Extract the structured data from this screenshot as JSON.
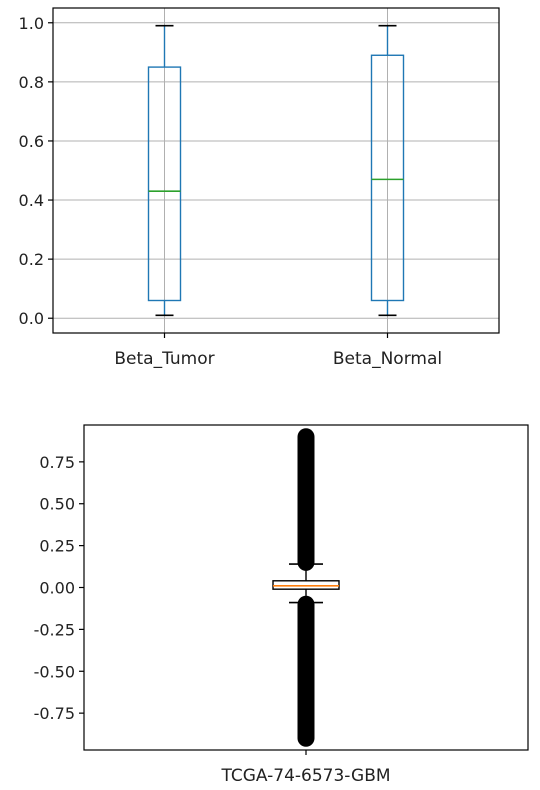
{
  "chart_data": [
    {
      "type": "box",
      "title": "",
      "xlabel": "",
      "ylabel": "",
      "ylim": [
        -0.05,
        1.05
      ],
      "yticks": [
        "0.0",
        "0.2",
        "0.4",
        "0.6",
        "0.8",
        "1.0"
      ],
      "yticks_values": [
        0.0,
        0.2,
        0.4,
        0.6,
        0.8,
        1.0
      ],
      "grid": true,
      "categories": [
        "Beta_Tumor",
        "Beta_Normal"
      ],
      "boxes": [
        {
          "whisker_low": 0.01,
          "q1": 0.06,
          "median": 0.43,
          "q3": 0.85,
          "whisker_high": 0.99
        },
        {
          "whisker_low": 0.01,
          "q1": 0.06,
          "median": 0.47,
          "q3": 0.89,
          "whisker_high": 0.99
        }
      ],
      "colors": {
        "box": "#1f77b4",
        "median": "#2ca02c",
        "grid": "#b0b0b0"
      }
    },
    {
      "type": "box",
      "title": "",
      "xlabel": "",
      "ylabel": "",
      "ylim": [
        -0.97,
        0.97
      ],
      "yticks": [
        "-0.75",
        "-0.50",
        "-0.25",
        "0.00",
        "0.25",
        "0.50",
        "0.75"
      ],
      "yticks_values": [
        -0.75,
        -0.5,
        -0.25,
        0.0,
        0.25,
        0.5,
        0.75
      ],
      "grid": false,
      "categories": [
        "TCGA-74-6573-GBM"
      ],
      "boxes": [
        {
          "whisker_low": -0.09,
          "q1": -0.01,
          "median": 0.01,
          "q3": 0.04,
          "whisker_high": 0.14,
          "fliers_high_range": [
            0.15,
            0.9
          ],
          "fliers_low_range": [
            -0.9,
            -0.1
          ]
        }
      ],
      "colors": {
        "box": "#000000",
        "median": "#ff7f0e",
        "flier": "#000000"
      }
    }
  ]
}
